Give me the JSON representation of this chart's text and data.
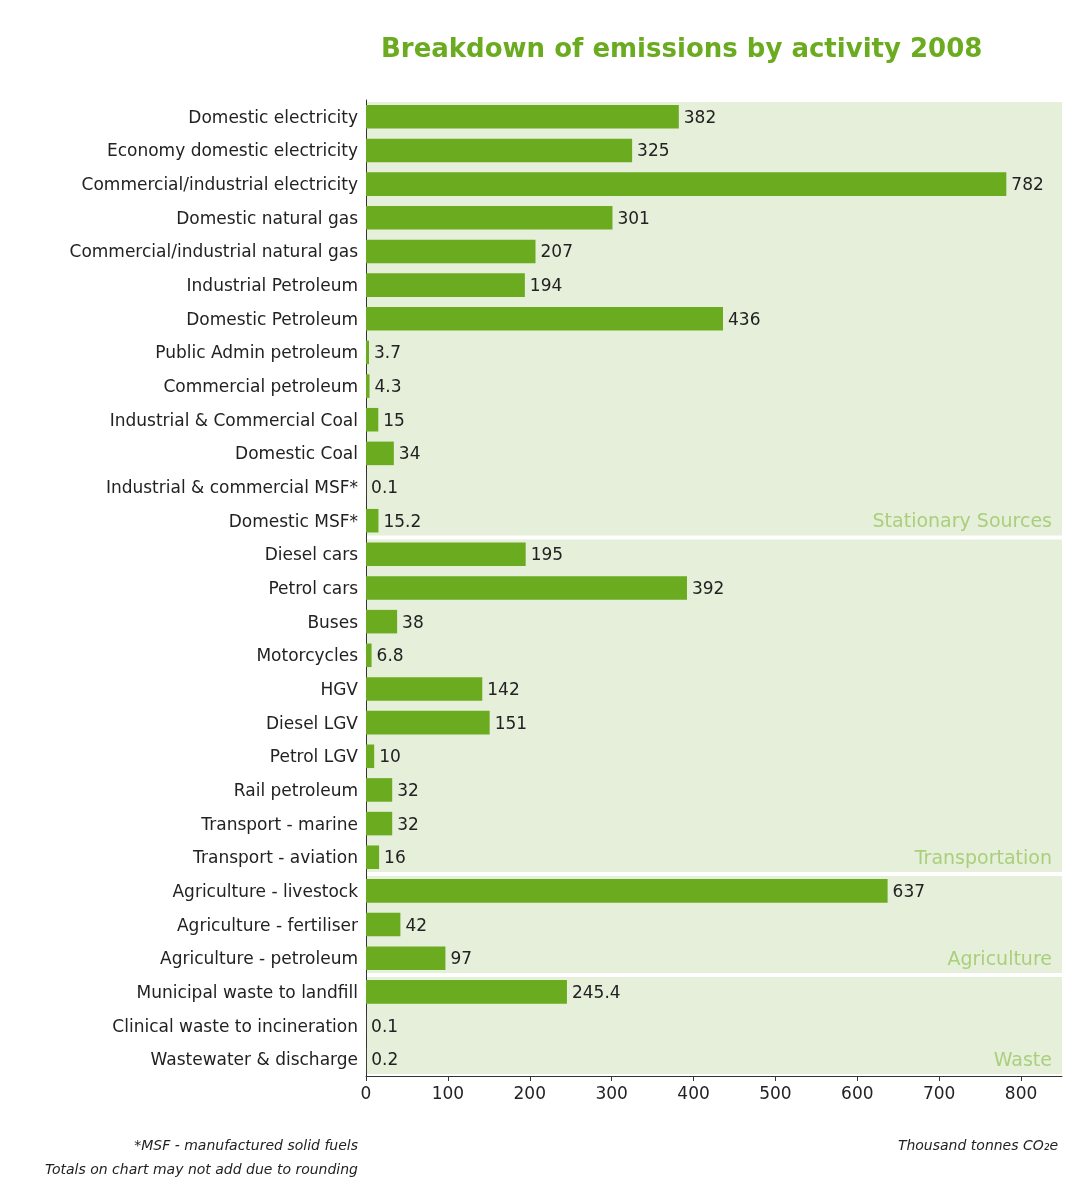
{
  "chart_data": {
    "type": "bar",
    "orientation": "horizontal",
    "title": "Breakdown of emissions by activity 2008",
    "xlabel": "Thousand tonnes CO₂e",
    "categories": [
      "Domestic electricity",
      "Economy domestic electricity",
      "Commercial/industrial electricity",
      "Domestic natural gas",
      "Commercial/industrial natural gas",
      "Industrial Petroleum",
      "Domestic Petroleum",
      "Public Admin petroleum",
      "Commercial petroleum",
      "Industrial & Commercial Coal",
      "Domestic Coal",
      "Industrial & commercial MSF*",
      "Domestic MSF*",
      "Diesel cars",
      "Petrol cars",
      "Buses",
      "Motorcycles",
      "HGV",
      "Diesel LGV",
      "Petrol LGV",
      "Rail petroleum",
      "Transport - marine",
      "Transport - aviation",
      "Agriculture - livestock",
      "Agriculture - fertiliser",
      "Agriculture - petroleum",
      "Municipal waste to landfill",
      "Clinical waste to incineration",
      "Wastewater & discharge"
    ],
    "values": [
      382,
      325,
      782,
      301,
      207,
      194,
      436,
      3.7,
      4.3,
      15,
      34,
      0.1,
      15.2,
      195,
      392,
      38,
      6.8,
      142,
      151,
      10,
      32,
      32,
      16,
      637,
      42,
      97,
      245.4,
      0.1,
      0.2
    ],
    "color": "#6aab1f",
    "data_labels": true,
    "xlim": [
      0,
      850
    ],
    "xticks": [
      0,
      100,
      200,
      300,
      400,
      500,
      600,
      700,
      800
    ],
    "grid": false,
    "bands": [
      {
        "axis": "y",
        "from": "Domestic electricity",
        "to": "Domestic MSF*",
        "label": "Stationary Sources",
        "color": "#e6efda"
      },
      {
        "axis": "y",
        "from": "Diesel cars",
        "to": "Transport - aviation",
        "label": "Transportation",
        "color": "#e6efda"
      },
      {
        "axis": "y",
        "from": "Agriculture - livestock",
        "to": "Agriculture - petroleum",
        "label": "Agriculture",
        "color": "#e6efda"
      },
      {
        "axis": "y",
        "from": "Municipal waste to landfill",
        "to": "Wastewater & discharge",
        "label": "Waste",
        "color": "#e6efda"
      }
    ],
    "annotations": [
      "*MSF - manufactured solid fuels",
      "Totals on chart may not add due to rounding"
    ]
  }
}
